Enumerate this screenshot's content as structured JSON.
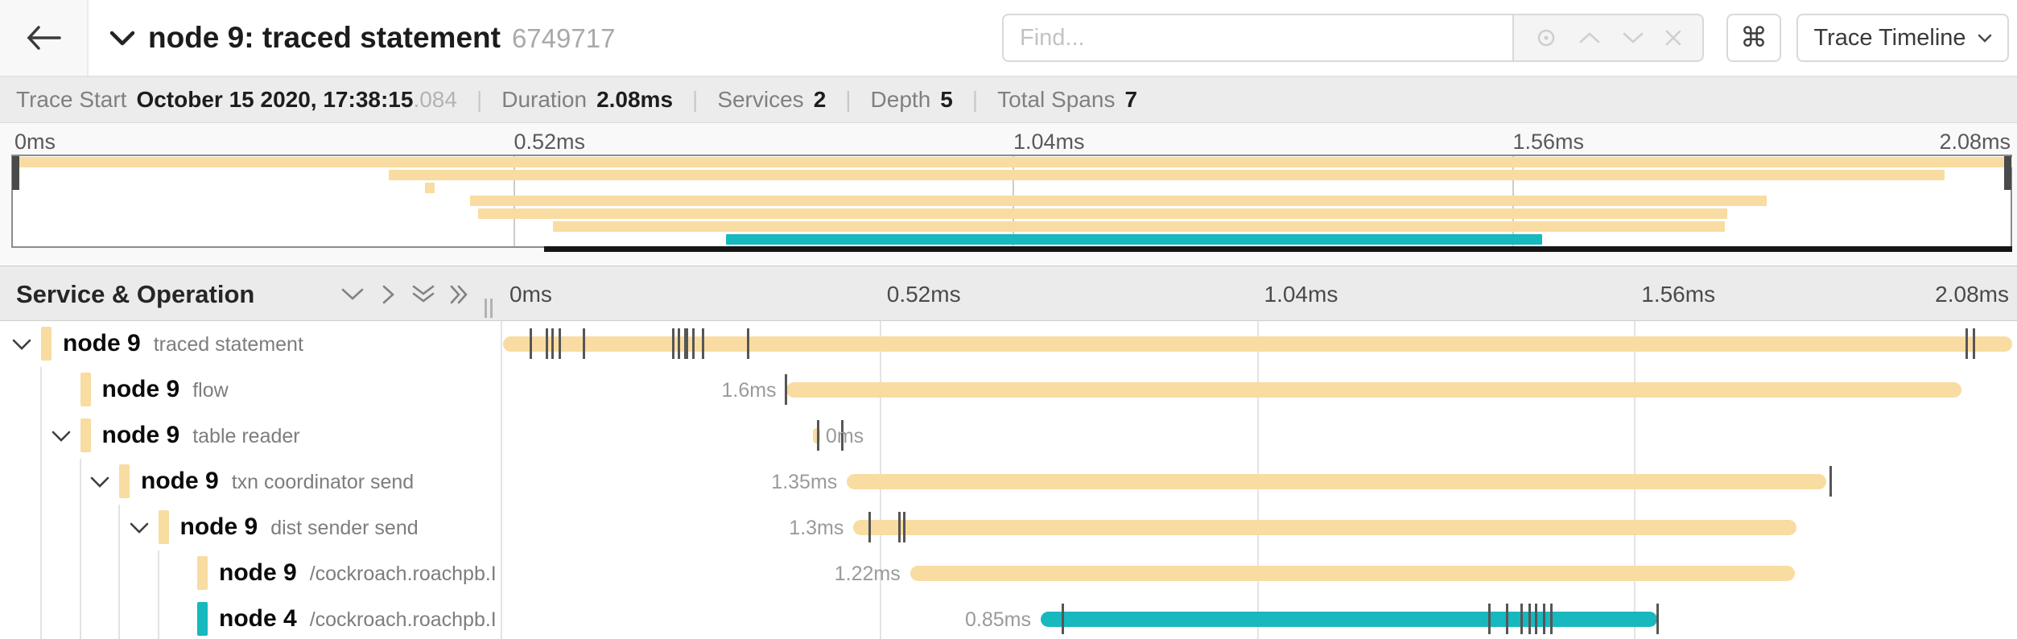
{
  "header": {
    "title": "node 9: traced statement",
    "trace_id": "6749717",
    "find_placeholder": "Find...",
    "shortcut_key": "⌘",
    "view_selector_label": "Trace Timeline",
    "icons": [
      "back-arrow-icon",
      "collapse-chevron-icon",
      "locate-icon",
      "prev-result-icon",
      "next-result-icon",
      "clear-search-icon",
      "keyboard-shortcut-icon",
      "dropdown-chevron-icon"
    ]
  },
  "trace_info": {
    "items": [
      {
        "label": "Trace Start",
        "value": "October 15 2020, 17:38:15",
        "suffix": ".084"
      },
      {
        "label": "Duration",
        "value": "2.08ms"
      },
      {
        "label": "Services",
        "value": "2"
      },
      {
        "label": "Depth",
        "value": "5"
      },
      {
        "label": "Total Spans",
        "value": "7"
      }
    ]
  },
  "timeline_header": {
    "title": "Service & Operation",
    "collapse_icons": [
      "collapse-all-chevron-down",
      "expand-chevron-right",
      "double-chevron-down",
      "double-chevron-right"
    ]
  },
  "colors": {
    "span_tan": "#F8DCA1",
    "span_teal": "#17B8BE",
    "log_tick": "#565656",
    "scrubber": "#4a4a4a"
  },
  "chart_data": {
    "type": "gantt-trace",
    "title": "node 9: traced statement",
    "unit": "ms",
    "total_duration_ms": 2.08,
    "services": 2,
    "depth": 5,
    "total_spans": 7,
    "axis_ticks": [
      {
        "label": "0ms",
        "ms": 0
      },
      {
        "label": "0.52ms",
        "ms": 0.52
      },
      {
        "label": "1.04ms",
        "ms": 1.04
      },
      {
        "label": "1.56ms",
        "ms": 1.56
      },
      {
        "label": "2.08ms",
        "ms": 2.08
      }
    ],
    "spans": [
      {
        "service": "node 9",
        "operation": "traced statement",
        "depth": 0,
        "expandable": true,
        "color": "#F8DCA1",
        "start_ms": 0,
        "duration_ms": 2.08,
        "duration_label": "",
        "label_side": "none",
        "log_ticks_ms": [
          0.038,
          0.06,
          0.068,
          0.078,
          0.111,
          0.235,
          0.242,
          0.251,
          0.254,
          0.262,
          0.276,
          0.338,
          2.017,
          2.027
        ]
      },
      {
        "service": "node 9",
        "operation": "flow",
        "depth": 1,
        "expandable": false,
        "color": "#F8DCA1",
        "start_ms": 0.39,
        "duration_ms": 1.62,
        "duration_label": "1.6ms",
        "label_side": "left",
        "log_ticks_ms": [
          0.39
        ]
      },
      {
        "service": "node 9",
        "operation": "table reader",
        "depth": 1,
        "expandable": true,
        "color": "#F8DCA1",
        "start_ms": 0.427,
        "duration_ms": 0.01,
        "duration_label": "0ms",
        "label_side": "right",
        "log_ticks_ms": [
          0.434,
          0.468
        ]
      },
      {
        "service": "node 9",
        "operation": "txn coordinator send",
        "depth": 2,
        "expandable": true,
        "color": "#F8DCA1",
        "start_ms": 0.474,
        "duration_ms": 1.35,
        "duration_label": "1.35ms",
        "label_side": "left",
        "log_ticks_ms": [
          1.83
        ]
      },
      {
        "service": "node 9",
        "operation": "dist sender send",
        "depth": 3,
        "expandable": true,
        "color": "#F8DCA1",
        "start_ms": 0.483,
        "duration_ms": 1.3,
        "duration_label": "1.3ms",
        "label_side": "left",
        "log_ticks_ms": [
          0.505,
          0.546,
          0.553
        ]
      },
      {
        "service": "node 9",
        "operation": "/cockroach.roachpb.I…",
        "depth": 4,
        "expandable": false,
        "color": "#F8DCA1",
        "start_ms": 0.561,
        "duration_ms": 1.22,
        "duration_label": "1.22ms",
        "label_side": "left",
        "log_ticks_ms": []
      },
      {
        "service": "node 4",
        "operation": "/cockroach.roachpb.I…",
        "depth": 4,
        "expandable": false,
        "color": "#17B8BE",
        "start_ms": 0.741,
        "duration_ms": 0.85,
        "duration_label": "0.85ms",
        "label_side": "left",
        "log_ticks_ms": [
          0.771,
          1.359,
          1.384,
          1.404,
          1.415,
          1.424,
          1.435,
          1.445,
          1.591
        ]
      }
    ]
  }
}
